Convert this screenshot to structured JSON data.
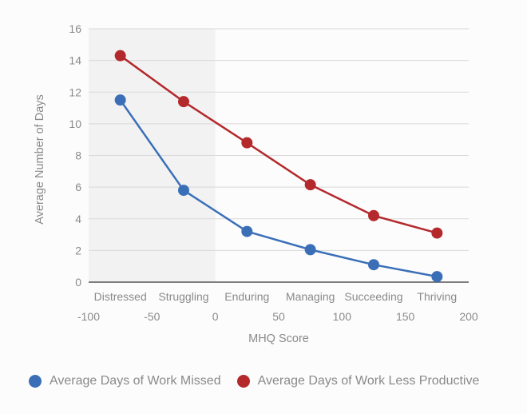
{
  "chart_data": {
    "type": "line",
    "xlabel": "MHQ Score",
    "ylabel": "Average Number of Days",
    "xlim": [
      -100,
      200
    ],
    "ylim": [
      0,
      16
    ],
    "x_ticks": [
      "-100",
      "-50",
      "0",
      "50",
      "100",
      "150",
      "200"
    ],
    "y_ticks": [
      "0",
      "2",
      "4",
      "6",
      "8",
      "10",
      "12",
      "14",
      "16"
    ],
    "categories": [
      "Distressed",
      "Struggling",
      "Enduring",
      "Managing",
      "Succeeding",
      "Thriving"
    ],
    "x": [
      -75,
      -25,
      25,
      75,
      125,
      175
    ],
    "grid": true,
    "shaded_region": [
      -100,
      0
    ],
    "legend_position": "bottom",
    "series": [
      {
        "name": "Average Days of Work Missed",
        "color": "#3a6fb8",
        "values": [
          11.5,
          5.8,
          3.2,
          2.05,
          1.1,
          0.35
        ]
      },
      {
        "name": "Average Days of Work Less Productive",
        "color": "#b3292c",
        "values": [
          14.3,
          11.4,
          8.8,
          6.15,
          4.2,
          3.1
        ]
      }
    ]
  }
}
